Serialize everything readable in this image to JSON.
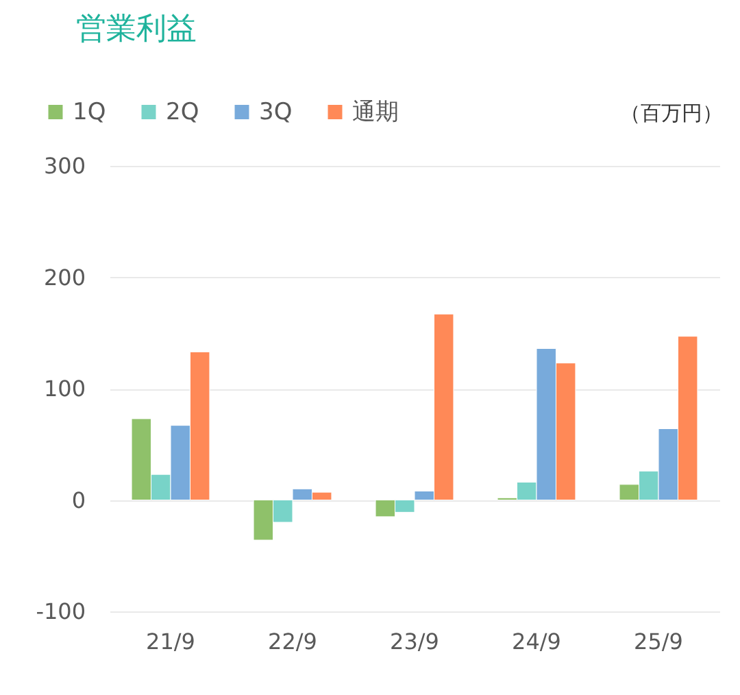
{
  "chart_data": {
    "type": "bar",
    "title": "営業利益",
    "ylabel": "（百万円）",
    "categories": [
      "21/9",
      "22/9",
      "23/9",
      "24/9",
      "25/9"
    ],
    "series": [
      {
        "name": "1Q",
        "color": "#8fc16a",
        "values": [
          73,
          -36,
          -15,
          2,
          14
        ]
      },
      {
        "name": "2Q",
        "color": "#78d3c8",
        "values": [
          23,
          -20,
          -11,
          16,
          26
        ]
      },
      {
        "name": "3Q",
        "color": "#78aadb",
        "values": [
          67,
          10,
          8,
          136,
          64
        ]
      },
      {
        "name": "通期",
        "color": "#ff8957",
        "values": [
          133,
          7,
          167,
          123,
          147
        ]
      }
    ],
    "ylim": [
      -100,
      300
    ],
    "yticks": [
      -100,
      0,
      100,
      200,
      300
    ],
    "grid": "y",
    "legend": "top left"
  }
}
